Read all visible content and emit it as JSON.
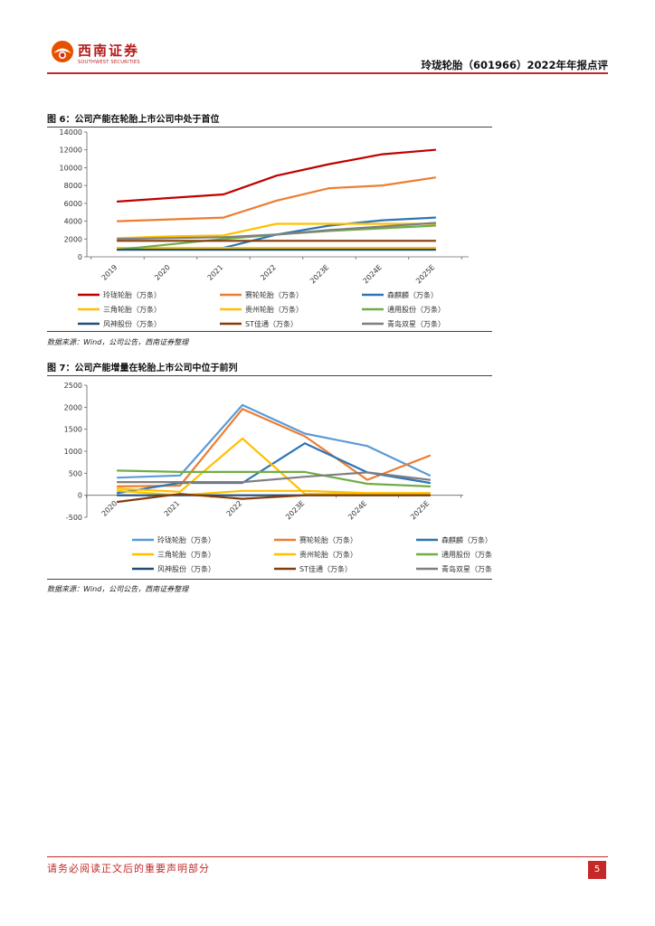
{
  "header": {
    "company_name": "西南证券",
    "company_name_en": "SOUTHWEST SECURITIES",
    "report_title": "玲珑轮胎（601966）2022年年报点评",
    "brand_color": "#c62828"
  },
  "figure6": {
    "title": "图 6：公司产能在轮胎上市公司中处于首位",
    "source": "数据来源：Wind，公司公告，西南证券整理"
  },
  "figure7": {
    "title": "图 7：公司产能增量在轮胎上市公司中位于前列",
    "source": "数据来源：Wind，公司公告，西南证券整理"
  },
  "chart_data": [
    {
      "type": "line",
      "title": "",
      "categories": [
        "2019",
        "2020",
        "2021",
        "2022",
        "2023E",
        "2024E",
        "2025E"
      ],
      "ylim": [
        0,
        14000
      ],
      "yticks": [
        0,
        2000,
        4000,
        6000,
        8000,
        10000,
        12000,
        14000
      ],
      "legend_position": "bottom",
      "grid": false,
      "series": [
        {
          "name": "玲珑轮胎（万条）",
          "color": "#c00000",
          "values": [
            6200,
            6600,
            7000,
            9100,
            10400,
            11500,
            12000
          ]
        },
        {
          "name": "赛轮轮胎（万条）",
          "color": "#ed7d31",
          "values": [
            4000,
            4200,
            4400,
            6300,
            7700,
            8000,
            8900
          ]
        },
        {
          "name": "森麒麟（万条）",
          "color": "#2e75b6",
          "values": [
            1000,
            900,
            1000,
            2500,
            3500,
            4100,
            4400
          ]
        },
        {
          "name": "三角轮胎（万条）",
          "color": "#ffc000",
          "values": [
            2100,
            2300,
            2400,
            3700,
            3700,
            3700,
            3700
          ]
        },
        {
          "name": "贵州轮胎（万条）",
          "color": "#ffc000",
          "values": [
            1000,
            1000,
            1000,
            1000,
            1000,
            1000,
            1000
          ]
        },
        {
          "name": "通用股份（万条）",
          "color": "#70ad47",
          "values": [
            800,
            1400,
            2000,
            2500,
            2900,
            3200,
            3500
          ]
        },
        {
          "name": "风神股份（万条）",
          "color": "#1f4e79",
          "values": [
            800,
            800,
            800,
            800,
            800,
            800,
            800
          ]
        },
        {
          "name": "ST佳通（万条）",
          "color": "#843c0c",
          "values": [
            1800,
            1800,
            1800,
            1800,
            1800,
            1800,
            1800
          ]
        },
        {
          "name": "青岛双星（万条）",
          "color": "#7f7f7f",
          "values": [
            2000,
            2100,
            2200,
            2500,
            3000,
            3400,
            3800
          ]
        }
      ]
    },
    {
      "type": "line",
      "title": "",
      "categories": [
        "2020",
        "2021",
        "2022",
        "2023E",
        "2024E",
        "2025E"
      ],
      "ylim": [
        -500,
        2500
      ],
      "yticks": [
        -500,
        0,
        500,
        1000,
        1500,
        2000,
        2500
      ],
      "legend_position": "bottom",
      "grid": false,
      "series": [
        {
          "name": "玲珑轮胎（万条）",
          "color": "#5b9bd5",
          "values": [
            400,
            450,
            2050,
            1400,
            1120,
            450
          ]
        },
        {
          "name": "赛轮轮胎（万条）",
          "color": "#ed7d31",
          "values": [
            200,
            220,
            1960,
            1340,
            350,
            900
          ]
        },
        {
          "name": "森麒麟（万条）",
          "color": "#2e75b6",
          "values": [
            50,
            280,
            280,
            1180,
            520,
            280
          ]
        },
        {
          "name": "三角轮胎（万条）",
          "color": "#ffc000",
          "values": [
            150,
            80,
            1290,
            30,
            30,
            30
          ]
        },
        {
          "name": "贵州轮胎（万条）",
          "color": "#ffc000",
          "values": [
            100,
            0,
            100,
            100,
            50,
            50
          ]
        },
        {
          "name": "通用股份（万条）",
          "color": "#70ad47",
          "values": [
            560,
            530,
            530,
            530,
            260,
            200
          ]
        },
        {
          "name": "风神股份（万条）",
          "color": "#1f4e79",
          "values": [
            0,
            0,
            0,
            0,
            0,
            0
          ]
        },
        {
          "name": "ST佳通（万条）",
          "color": "#843c0c",
          "values": [
            -150,
            30,
            -80,
            0,
            0,
            0
          ]
        },
        {
          "name": "青岛双星（万条）",
          "color": "#7f7f7f",
          "values": [
            300,
            300,
            300,
            420,
            520,
            350
          ]
        }
      ]
    }
  ],
  "footer": {
    "disclaimer": "请务必阅读正文后的重要声明部分",
    "page_number": "5"
  }
}
